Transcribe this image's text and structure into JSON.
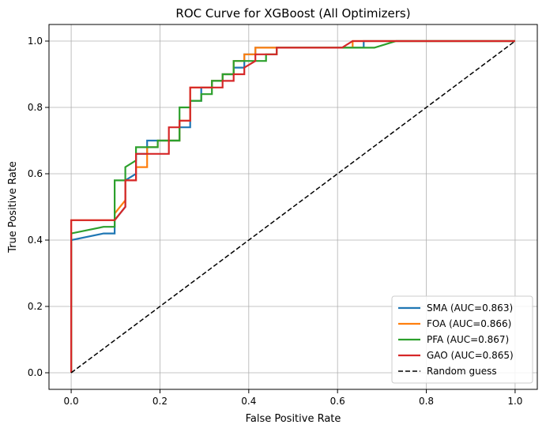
{
  "chart_data": {
    "type": "line",
    "title": "ROC Curve for XGBoost (All Optimizers)",
    "xlabel": "False Positive Rate",
    "ylabel": "True Positive Rate",
    "xlim": [
      -0.05,
      1.05
    ],
    "ylim": [
      -0.05,
      1.05
    ],
    "xticks": [
      0.0,
      0.2,
      0.4,
      0.6,
      0.8,
      1.0
    ],
    "yticks": [
      0.0,
      0.2,
      0.4,
      0.6,
      0.8,
      1.0
    ],
    "xtick_labels": [
      "0.0",
      "0.2",
      "0.4",
      "0.6",
      "0.8",
      "1.0"
    ],
    "ytick_labels": [
      "0.0",
      "0.2",
      "0.4",
      "0.6",
      "0.8",
      "1.0"
    ],
    "grid": true,
    "legend_position": "lower-right",
    "series": [
      {
        "name": "SMA (AUC=0.863)",
        "color": "#1f77b4",
        "x": [
          0,
          0,
          0.073,
          0.073,
          0.098,
          0.098,
          0.122,
          0.122,
          0.146,
          0.146,
          0.171,
          0.171,
          0.195,
          0.195,
          0.244,
          0.244,
          0.268,
          0.268,
          0.293,
          0.293,
          0.317,
          0.317,
          0.341,
          0.341,
          0.366,
          0.366,
          0.39,
          0.39,
          0.415,
          0.415,
          0.634,
          0.634,
          0.659,
          0.659,
          1.0
        ],
        "y": [
          0,
          0.4,
          0.42,
          0.42,
          0.42,
          0.46,
          0.5,
          0.58,
          0.6,
          0.66,
          0.66,
          0.7,
          0.7,
          0.7,
          0.7,
          0.74,
          0.74,
          0.82,
          0.82,
          0.86,
          0.86,
          0.88,
          0.88,
          0.9,
          0.9,
          0.92,
          0.92,
          0.96,
          0.96,
          0.98,
          0.98,
          0.98,
          0.98,
          1.0,
          1.0
        ]
      },
      {
        "name": "FOA (AUC=0.866)",
        "color": "#ff7f0e",
        "x": [
          0,
          0,
          0.098,
          0.098,
          0.122,
          0.122,
          0.146,
          0.146,
          0.171,
          0.171,
          0.195,
          0.195,
          0.244,
          0.244,
          0.268,
          0.268,
          0.317,
          0.317,
          0.341,
          0.341,
          0.366,
          0.366,
          0.39,
          0.39,
          0.415,
          0.415,
          0.634,
          0.634,
          1.0
        ],
        "y": [
          0,
          0.46,
          0.46,
          0.48,
          0.52,
          0.58,
          0.58,
          0.62,
          0.62,
          0.68,
          0.68,
          0.7,
          0.7,
          0.76,
          0.76,
          0.86,
          0.86,
          0.88,
          0.88,
          0.9,
          0.9,
          0.94,
          0.94,
          0.96,
          0.96,
          0.98,
          0.98,
          1.0,
          1.0
        ]
      },
      {
        "name": "PFA (AUC=0.867)",
        "color": "#2ca02c",
        "x": [
          0,
          0,
          0.073,
          0.073,
          0.098,
          0.098,
          0.122,
          0.122,
          0.146,
          0.146,
          0.195,
          0.195,
          0.244,
          0.244,
          0.268,
          0.268,
          0.293,
          0.293,
          0.317,
          0.317,
          0.341,
          0.341,
          0.366,
          0.366,
          0.415,
          0.415,
          0.439,
          0.439,
          0.463,
          0.463,
          0.683,
          0.732,
          1.0
        ],
        "y": [
          0,
          0.42,
          0.44,
          0.44,
          0.44,
          0.58,
          0.58,
          0.62,
          0.64,
          0.68,
          0.68,
          0.7,
          0.7,
          0.8,
          0.8,
          0.82,
          0.82,
          0.84,
          0.84,
          0.88,
          0.88,
          0.9,
          0.9,
          0.94,
          0.94,
          0.94,
          0.94,
          0.96,
          0.96,
          0.98,
          0.98,
          1.0,
          1.0
        ]
      },
      {
        "name": "GAO (AUC=0.865)",
        "color": "#d62728",
        "x": [
          0,
          0,
          0.098,
          0.098,
          0.122,
          0.122,
          0.146,
          0.146,
          0.171,
          0.171,
          0.22,
          0.22,
          0.244,
          0.244,
          0.268,
          0.268,
          0.317,
          0.317,
          0.341,
          0.341,
          0.366,
          0.366,
          0.39,
          0.39,
          0.415,
          0.415,
          0.463,
          0.463,
          0.61,
          0.61,
          0.634,
          0.634,
          1.0
        ],
        "y": [
          0,
          0.46,
          0.46,
          0.46,
          0.5,
          0.58,
          0.58,
          0.66,
          0.66,
          0.66,
          0.66,
          0.74,
          0.74,
          0.76,
          0.76,
          0.86,
          0.86,
          0.86,
          0.86,
          0.88,
          0.88,
          0.9,
          0.9,
          0.92,
          0.94,
          0.96,
          0.96,
          0.98,
          0.98,
          0.98,
          1.0,
          1.0,
          1.0
        ]
      },
      {
        "name": "Random guess",
        "color": "#000000",
        "dashed": true,
        "x": [
          0,
          1
        ],
        "y": [
          0,
          1
        ]
      }
    ]
  }
}
